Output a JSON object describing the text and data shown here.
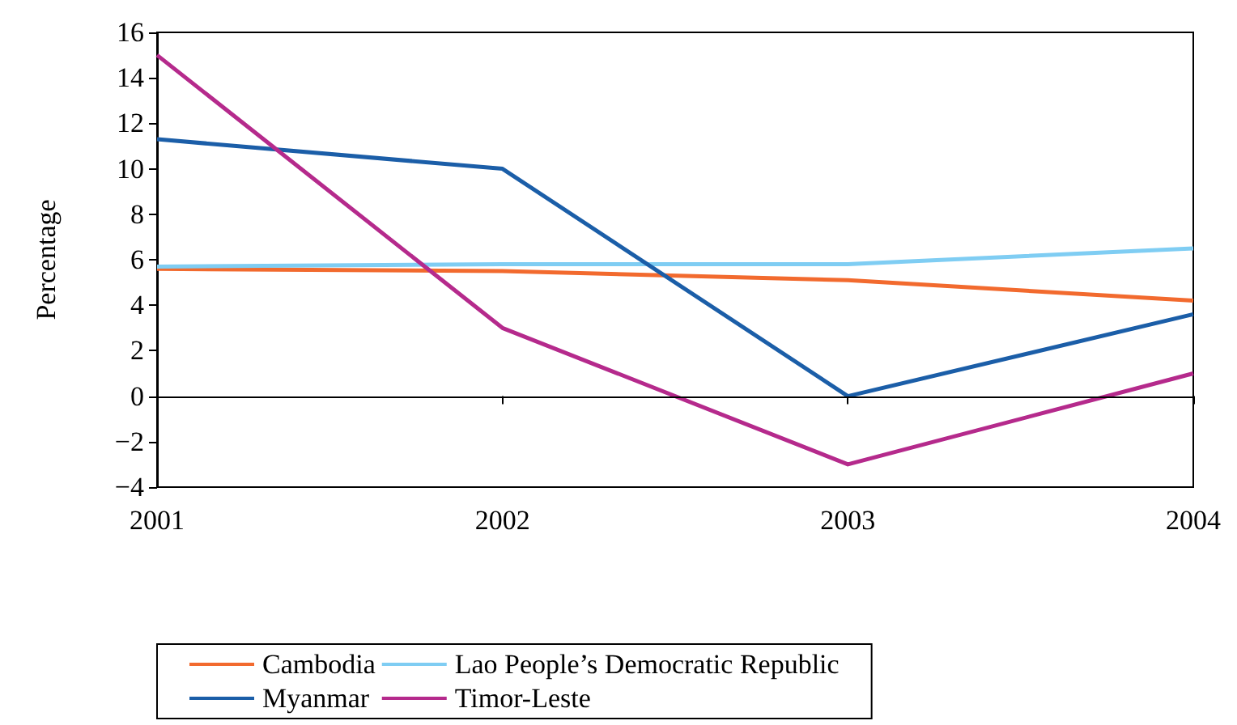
{
  "chart_data": {
    "type": "line",
    "ylabel": "Percentage",
    "categories": [
      "2001",
      "2002",
      "2003",
      "2004"
    ],
    "series": [
      {
        "name": "Cambodia",
        "color": "#f26a2e",
        "values": [
          5.6,
          5.5,
          5.1,
          4.2
        ]
      },
      {
        "name": "Lao People’s Democratic Republic",
        "color": "#7fcdf3",
        "values": [
          5.7,
          5.8,
          5.8,
          6.5
        ]
      },
      {
        "name": "Myanmar",
        "color": "#1b5ea8",
        "values": [
          11.3,
          10.0,
          0.0,
          3.6
        ]
      },
      {
        "name": "Timor-Leste",
        "color": "#b52a8c",
        "values": [
          15.0,
          3.0,
          -3.0,
          1.0
        ]
      }
    ],
    "ylim": [
      -4,
      16
    ],
    "yticks": [
      -4,
      -2,
      0,
      2,
      4,
      6,
      8,
      10,
      12,
      14,
      16
    ],
    "ref_lines": [
      {
        "axis": "y",
        "value": 0,
        "color": "#000000"
      }
    ],
    "grid": false,
    "legend": "bottom",
    "marker": "none",
    "line_style": "solid"
  }
}
